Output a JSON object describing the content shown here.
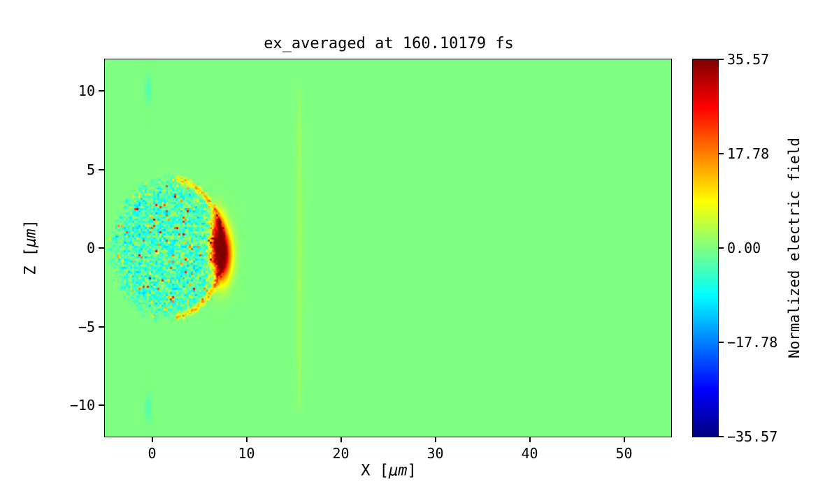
{
  "chart_data": {
    "type": "heatmap",
    "title": "ex_averaged at 160.10179 fs",
    "xlabel": "X [μm]",
    "xlabel_parts": {
      "pre": "X [",
      "unit": "μm",
      "post": "]"
    },
    "ylabel": "Z [μm]",
    "ylabel_parts": {
      "pre": "Z [",
      "unit": "μm",
      "post": "]"
    },
    "colorbar_label": "Normalized electric field",
    "colormap": "jet",
    "clim": [
      -35.57,
      35.57
    ],
    "x_range": [
      -5,
      55
    ],
    "z_range": [
      -12,
      12
    ],
    "x_ticks": [
      0,
      10,
      20,
      30,
      40,
      50
    ],
    "x_tick_labels": [
      "0",
      "10",
      "20",
      "30",
      "40",
      "50"
    ],
    "z_ticks": [
      -10,
      -5,
      0,
      5,
      10
    ],
    "z_tick_labels": [
      "−10",
      "−5",
      "0",
      "5",
      "10"
    ],
    "colorbar_ticks": [
      35.57,
      17.78,
      0,
      -17.78,
      -35.57
    ],
    "colorbar_tick_labels": [
      "35.57",
      "17.78",
      "0.00",
      "−17.78",
      "−35.57"
    ],
    "background_value": 0,
    "background_color": "#80ff80",
    "grid": false,
    "features": [
      {
        "name": "wakefield-structure",
        "shape": "speckled-ellipse",
        "center_x": 1.6,
        "center_z": 0,
        "radius_x": 6.3,
        "radius_z": 4.7,
        "value_mean": -4,
        "value_spread": 7,
        "rim_value": 14,
        "description": "turbulent cyan/green wake region x≈-4..8 μm, z≈-4.6..4.6 μm with orange rim on right boundary"
      },
      {
        "name": "laser-pulse-peak",
        "shape": "gaussian",
        "x": 7.3,
        "z": -0.4,
        "sigma_x": 0.7,
        "sigma_z": 1.1,
        "amplitude": 46
      },
      {
        "name": "laser-pulse-secondary",
        "shape": "gaussian",
        "x": 6.9,
        "z": 1.2,
        "sigma_x": 0.5,
        "sigma_z": 0.8,
        "amplitude": 20
      },
      {
        "name": "ionization-front",
        "shape": "vertical-streak",
        "x": 15.6,
        "half_width": 0.5,
        "z_min": -10.5,
        "z_max": 10.4,
        "peak_value": 2.5,
        "description": "faint pale vertical streak at x≈15.6 μm spanning nearly full height"
      },
      {
        "name": "axis-artifact-top",
        "shape": "gaussian",
        "x": -0.4,
        "z": 10.1,
        "sigma_x": 0.25,
        "sigma_z": 0.6,
        "amplitude": -3.5
      },
      {
        "name": "axis-artifact-bottom",
        "shape": "gaussian",
        "x": -0.4,
        "z": -10.2,
        "sigma_x": 0.25,
        "sigma_z": 0.6,
        "amplitude": -3.5
      }
    ]
  }
}
